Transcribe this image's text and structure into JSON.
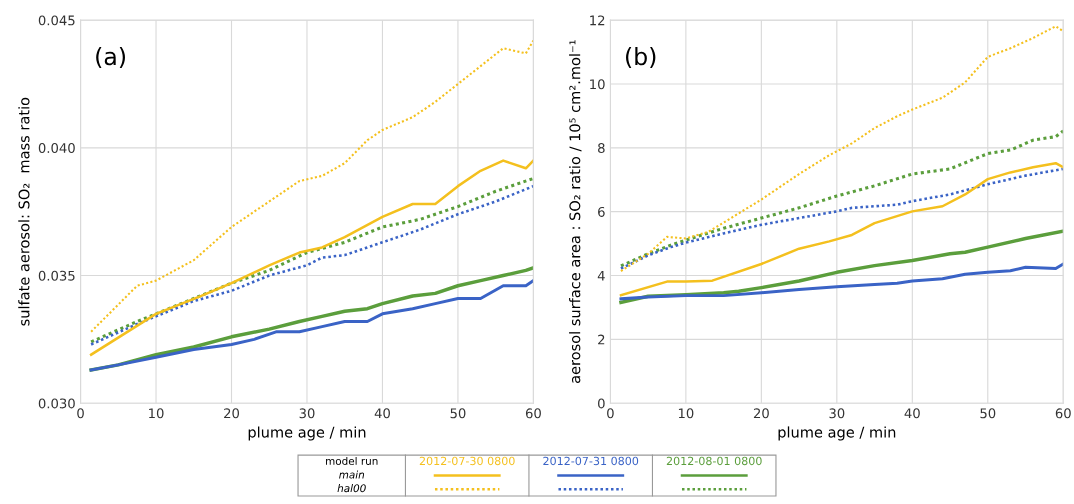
{
  "chart_data": [
    {
      "type": "line",
      "title": "(a)",
      "xlabel": "plume age / min",
      "ylabel": "sulfate aerosol: SO₂  mass ratio",
      "legend_title": "model run",
      "annotations": [
        "main",
        "hal00"
      ],
      "legend": "bottom",
      "grid": true,
      "marker": "none",
      "xlim": [
        0,
        60
      ],
      "xticks": [
        0,
        10,
        20,
        30,
        40,
        50,
        60
      ],
      "ylim": [
        0.03,
        0.045
      ],
      "yticks": [
        {
          "value": 0.03,
          "label": "0.030"
        },
        {
          "value": 0.035,
          "label": "0.035"
        },
        {
          "value": 0.04,
          "label": "0.040"
        },
        {
          "value": 0.045,
          "label": "0.045"
        }
      ],
      "series": [
        {
          "name": "2012-07-30 0800",
          "color": "#f4c01e",
          "line_style": "solid",
          "x": [
            1.4,
            10,
            16,
            20,
            25,
            29,
            32,
            35,
            40,
            44,
            47,
            50,
            53,
            56,
            59,
            60
          ],
          "values": [
            0.0319,
            0.0335,
            0.0342,
            0.0347,
            0.0354,
            0.0359,
            0.0361,
            0.0365,
            0.0373,
            0.0378,
            0.0378,
            0.0385,
            0.0391,
            0.0395,
            0.0392,
            0.0395
          ]
        },
        {
          "name": "2012-07-31 0800",
          "color": "#3a63c6",
          "line_style": "solid",
          "x": [
            1.4,
            5,
            10,
            15,
            20,
            23,
            26,
            29,
            32,
            35,
            38,
            40,
            44,
            47,
            50,
            53,
            56,
            59,
            60
          ],
          "values": [
            0.0313,
            0.0315,
            0.0318,
            0.0321,
            0.0323,
            0.0325,
            0.0328,
            0.0328,
            0.033,
            0.0332,
            0.0332,
            0.0335,
            0.0337,
            0.0339,
            0.0341,
            0.0341,
            0.0346,
            0.0346,
            0.0348
          ]
        },
        {
          "name": "2012-08-01 0800",
          "color": "#5b9e3c",
          "line_style": "solid",
          "x": [
            1.4,
            5,
            10,
            15,
            20,
            25,
            29,
            32,
            35,
            38,
            40,
            44,
            47,
            50,
            53,
            56,
            59,
            60
          ],
          "values": [
            0.0313,
            0.0315,
            0.0319,
            0.0322,
            0.0326,
            0.0329,
            0.0332,
            0.0334,
            0.0336,
            0.0337,
            0.0339,
            0.0342,
            0.0343,
            0.0346,
            0.0348,
            0.035,
            0.0352,
            0.0353
          ]
        },
        {
          "color": "#f4c01e",
          "line_style": "dotted",
          "x": [
            1.4,
            7.5,
            10,
            15,
            20,
            25,
            29,
            32,
            35,
            38,
            40,
            44,
            47,
            50,
            53,
            56,
            59,
            60
          ],
          "values": [
            0.0328,
            0.0346,
            0.0348,
            0.0356,
            0.0369,
            0.0379,
            0.0387,
            0.0389,
            0.0394,
            0.0403,
            0.0407,
            0.0412,
            0.0418,
            0.0425,
            0.0432,
            0.0439,
            0.0437,
            0.0442
          ]
        },
        {
          "color": "#3a63c6",
          "line_style": "dotted",
          "x": [
            1.4,
            7.5,
            10,
            15,
            20,
            25,
            30,
            32,
            35,
            40,
            45,
            50,
            55,
            60
          ],
          "values": [
            0.0323,
            0.0331,
            0.0334,
            0.034,
            0.0344,
            0.035,
            0.0354,
            0.0357,
            0.0358,
            0.0363,
            0.0368,
            0.0374,
            0.0379,
            0.0385
          ]
        },
        {
          "color": "#5b9e3c",
          "line_style": "dotted",
          "x": [
            1.4,
            7.5,
            10,
            15,
            20,
            25,
            30,
            35,
            40,
            45,
            50,
            55,
            60
          ],
          "values": [
            0.0324,
            0.0332,
            0.0335,
            0.0341,
            0.0347,
            0.0352,
            0.0359,
            0.0363,
            0.0369,
            0.0372,
            0.0377,
            0.0383,
            0.0388
          ]
        }
      ]
    },
    {
      "type": "line",
      "title": "(b)",
      "xlabel": "plume age / min",
      "ylabel": "aerosol surface area : SO₂ ratio / 10⁵ cm².mol⁻¹",
      "grid": true,
      "marker": "none",
      "xlim": [
        0,
        60
      ],
      "xticks": [
        0,
        10,
        20,
        30,
        40,
        50,
        60
      ],
      "ylim": [
        0,
        12
      ],
      "yticks": [
        0,
        2,
        4,
        6,
        8,
        10,
        12
      ],
      "series": [
        {
          "color": "#f4c01e",
          "line_style": "solid",
          "x": [
            1.4,
            7.5,
            10,
            13.5,
            20,
            25,
            29,
            32,
            35,
            40,
            44,
            47,
            50,
            53,
            56,
            59,
            60
          ],
          "values": [
            3.38,
            3.81,
            3.81,
            3.84,
            4.36,
            4.84,
            5.07,
            5.27,
            5.64,
            6.01,
            6.17,
            6.54,
            7.02,
            7.23,
            7.39,
            7.52,
            7.39
          ]
        },
        {
          "color": "#3a63c6",
          "line_style": "solid",
          "x": [
            1.4,
            5,
            10,
            15,
            20,
            25,
            30,
            35,
            38,
            40,
            44,
            47,
            50,
            53,
            55,
            59,
            60
          ],
          "values": [
            3.27,
            3.33,
            3.37,
            3.37,
            3.46,
            3.56,
            3.65,
            3.72,
            3.76,
            3.83,
            3.9,
            4.04,
            4.1,
            4.15,
            4.26,
            4.22,
            4.36
          ]
        },
        {
          "color": "#5b9e3c",
          "line_style": "solid",
          "x": [
            1.4,
            5,
            10,
            15,
            17,
            20,
            25,
            30,
            35,
            40,
            45,
            47,
            50,
            55,
            60
          ],
          "values": [
            3.16,
            3.35,
            3.4,
            3.46,
            3.51,
            3.62,
            3.83,
            4.1,
            4.31,
            4.47,
            4.68,
            4.73,
            4.89,
            5.16,
            5.39
          ]
        },
        {
          "color": "#f4c01e",
          "line_style": "dotted",
          "x": [
            1.4,
            5,
            7.5,
            10,
            13,
            20,
            25,
            29,
            32,
            35,
            38,
            40,
            44,
            47,
            50,
            53,
            56,
            59,
            60
          ],
          "values": [
            4.14,
            4.68,
            5.21,
            5.16,
            5.37,
            6.38,
            7.18,
            7.77,
            8.14,
            8.62,
            8.99,
            9.2,
            9.57,
            10.05,
            10.85,
            11.12,
            11.44,
            11.81,
            11.65
          ]
        },
        {
          "color": "#3a63c6",
          "line_style": "dotted",
          "x": [
            1.4,
            5,
            8,
            10,
            15,
            20,
            25,
            30,
            32,
            38,
            40,
            45,
            50,
            55,
            60
          ],
          "values": [
            4.22,
            4.63,
            4.89,
            5.03,
            5.32,
            5.59,
            5.8,
            6.01,
            6.12,
            6.22,
            6.33,
            6.54,
            6.86,
            7.13,
            7.34
          ]
        },
        {
          "color": "#5b9e3c",
          "line_style": "dotted",
          "x": [
            1.4,
            5,
            8,
            10,
            15,
            20,
            25,
            30,
            35,
            40,
            45,
            50,
            53,
            56,
            59,
            60
          ],
          "values": [
            4.3,
            4.68,
            4.95,
            5.11,
            5.48,
            5.8,
            6.12,
            6.49,
            6.81,
            7.18,
            7.34,
            7.82,
            7.93,
            8.24,
            8.35,
            8.53
          ]
        }
      ]
    }
  ]
}
